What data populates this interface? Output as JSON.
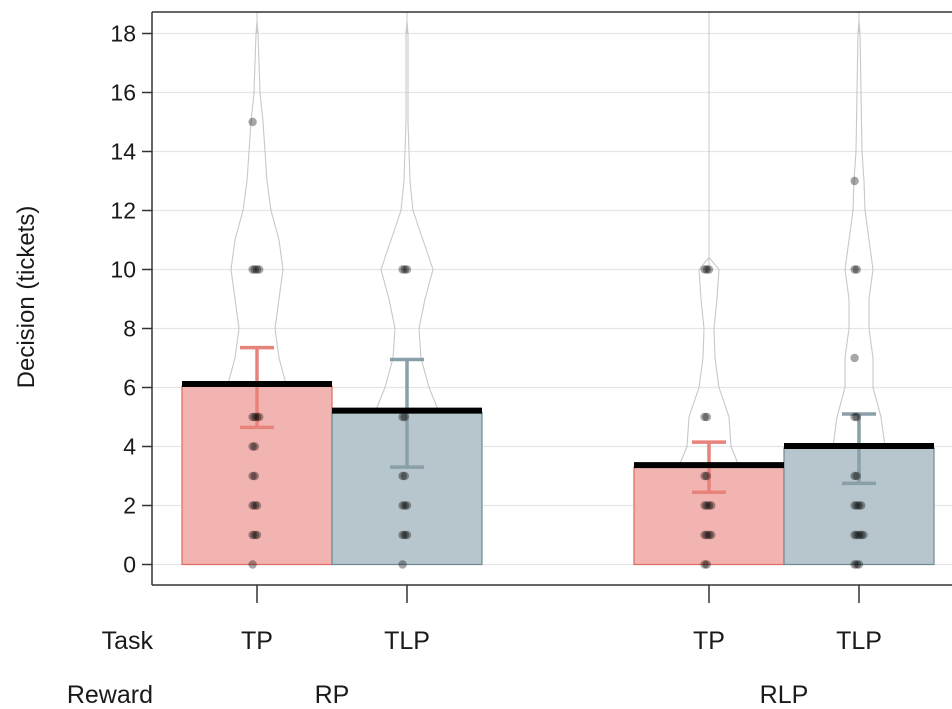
{
  "chart_data": {
    "type": "bar",
    "ylabel": "Decision (tickets)",
    "ylim": [
      -0.7,
      18.7
    ],
    "yticks": [
      0,
      2,
      4,
      6,
      8,
      10,
      12,
      14,
      16,
      18
    ],
    "grid": true,
    "factor_labels": {
      "task": "Task",
      "reward": "Reward"
    },
    "reward_groups": [
      "RP",
      "RLP"
    ],
    "colors": {
      "TP": "#f2b4b0",
      "TLP": "#b7c6cc",
      "TP_err": "#e8837c",
      "TLP_err": "#8aa0a8"
    },
    "bars": [
      {
        "reward": "RP",
        "task": "TP",
        "mean": 6.05,
        "err_low": 4.65,
        "err_high": 7.35,
        "points": [
          10,
          10,
          10,
          10,
          5,
          5,
          5,
          5,
          4,
          4,
          3,
          3,
          2,
          2,
          2,
          1,
          1,
          1,
          0,
          15
        ]
      },
      {
        "reward": "RP",
        "task": "TLP",
        "mean": 5.15,
        "err_low": 3.3,
        "err_high": 6.95,
        "points": [
          10,
          10,
          10,
          5,
          5,
          3,
          3,
          2,
          2,
          2,
          1,
          1,
          1,
          0
        ]
      },
      {
        "reward": "RLP",
        "task": "TP",
        "mean": 3.3,
        "err_low": 2.45,
        "err_high": 4.15,
        "points": [
          10,
          10,
          10,
          5,
          5,
          3,
          3,
          2,
          2,
          2,
          2,
          1,
          1,
          1,
          1,
          0,
          0
        ]
      },
      {
        "reward": "RLP",
        "task": "TLP",
        "mean": 3.95,
        "err_low": 2.75,
        "err_high": 5.1,
        "points": [
          13,
          10,
          10,
          7,
          5,
          5,
          3,
          3,
          2,
          2,
          2,
          2,
          1,
          1,
          1,
          1,
          1,
          0,
          0,
          0
        ]
      }
    ]
  }
}
